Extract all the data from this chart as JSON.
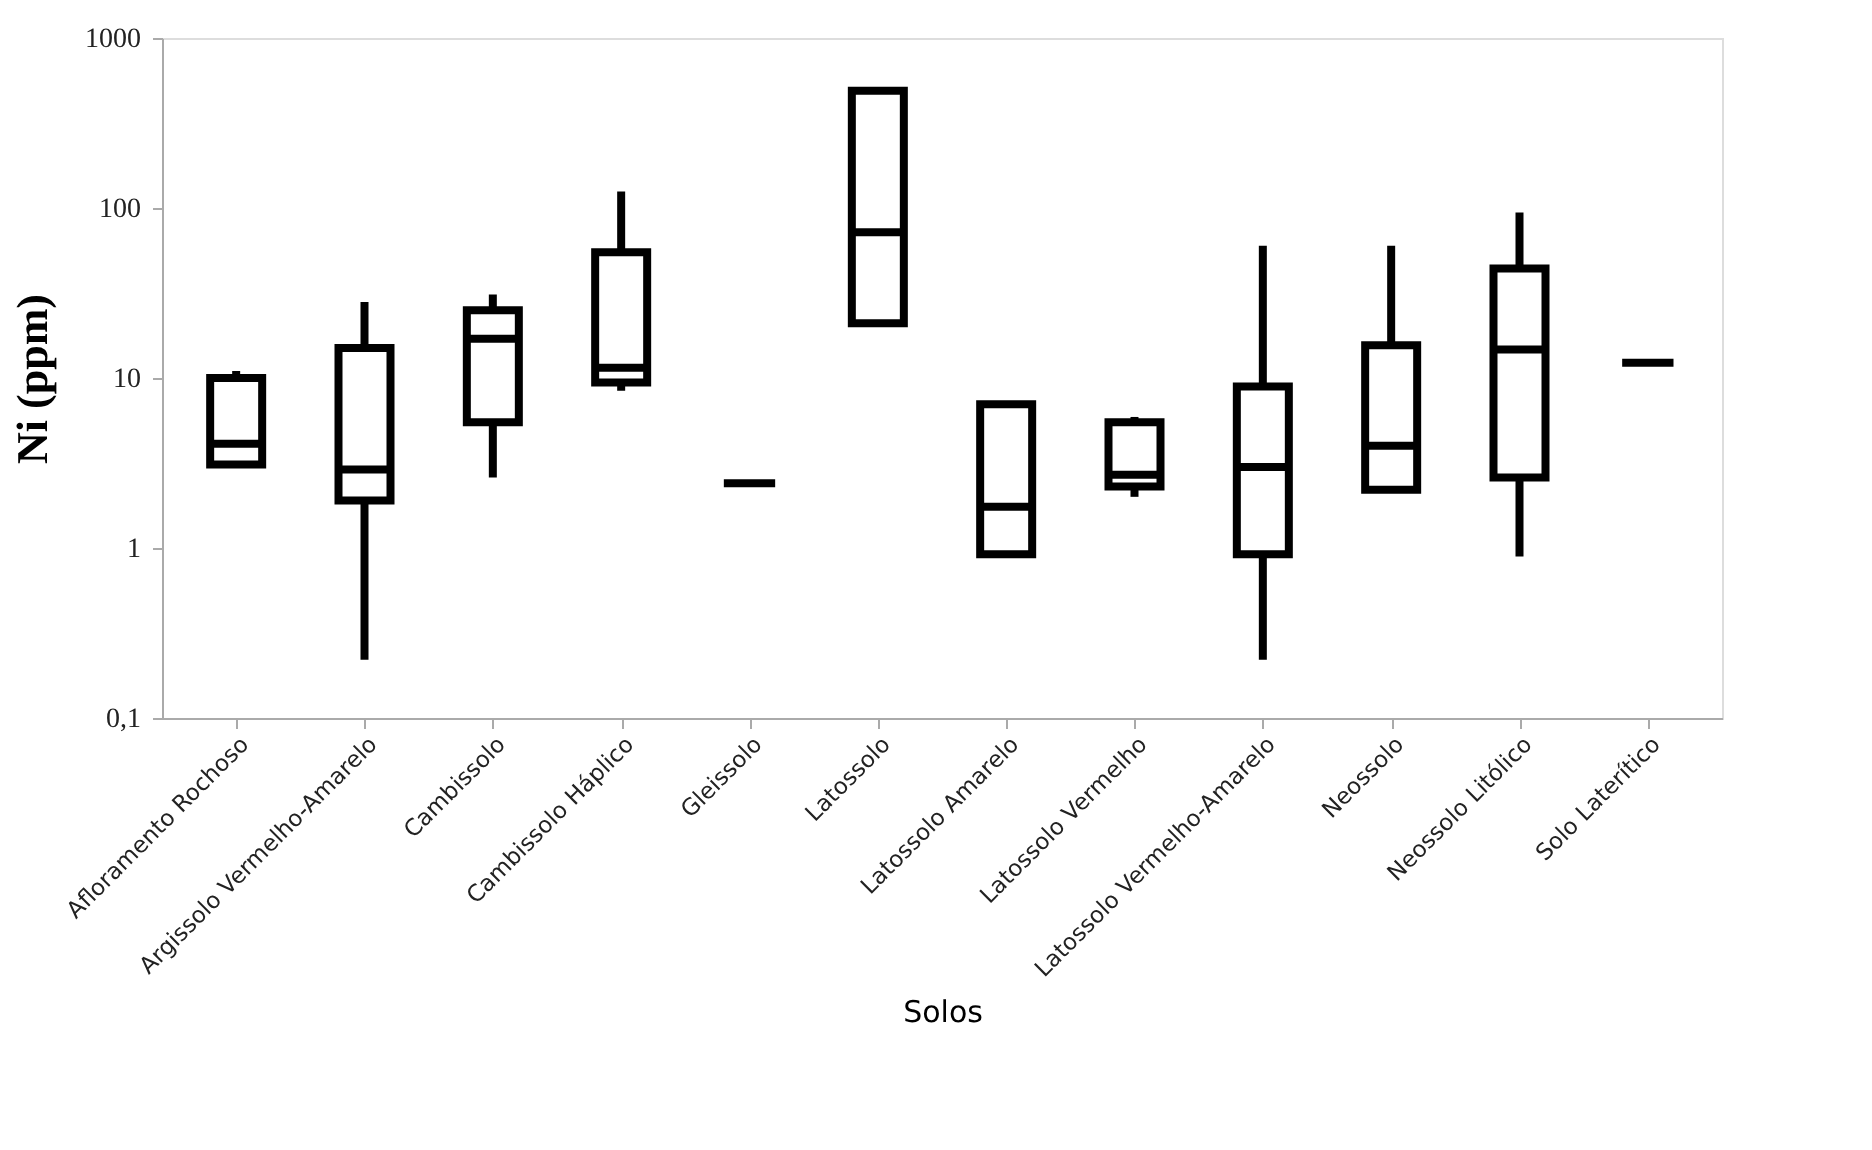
{
  "chart_data": {
    "type": "box",
    "xlabel": "Solos",
    "ylabel": "Ni  (ppm)",
    "log": true,
    "grid": false,
    "categories": [
      "Afloramento Rochoso",
      "Argissolo Vermelho-Amarelo",
      "Cambissolo",
      "Cambissolo Háplico",
      "Gleissolo",
      "Latossolo",
      "Latossolo Amarelo",
      "Latossolo Vermelho",
      "Latossolo Vermelho-Amarelo",
      "Neossolo",
      "Neossolo Litólico",
      "Solo Laterítico"
    ],
    "boxes": [
      {
        "low": 3.1,
        "q1": 3.1,
        "median": 4.1,
        "q3": 10,
        "high": 11
      },
      {
        "low": 0.22,
        "q1": 1.9,
        "median": 2.9,
        "q3": 15,
        "high": 28
      },
      {
        "low": 2.6,
        "q1": 5.5,
        "median": 17,
        "q3": 25,
        "high": 31
      },
      {
        "low": 8.4,
        "q1": 9.4,
        "median": 11.5,
        "q3": 55,
        "high": 125
      },
      {
        "low": 2.4,
        "q1": 2.4,
        "median": 2.4,
        "q3": 2.4,
        "high": 2.4
      },
      {
        "low": 21,
        "q1": 21,
        "median": 72,
        "q3": 490,
        "high": 490
      },
      {
        "low": 0.92,
        "q1": 0.92,
        "median": 1.75,
        "q3": 7,
        "high": 7
      },
      {
        "low": 2,
        "q1": 2.3,
        "median": 2.7,
        "q3": 5.5,
        "high": 5.9
      },
      {
        "low": 0.22,
        "q1": 0.92,
        "median": 3,
        "q3": 8.9,
        "high": 60
      },
      {
        "low": 2.2,
        "q1": 2.2,
        "median": 4,
        "q3": 15.6,
        "high": 60
      },
      {
        "low": 0.89,
        "q1": 2.6,
        "median": 14.7,
        "q3": 44,
        "high": 94
      },
      {
        "low": 12.3,
        "q1": 12.3,
        "median": 12.3,
        "q3": 12.3,
        "high": 12.3
      }
    ],
    "ylim": [
      0.1,
      1000
    ],
    "yticks": [
      {
        "value": 0.1,
        "label": "0,1"
      },
      1,
      10,
      100,
      1000
    ]
  }
}
